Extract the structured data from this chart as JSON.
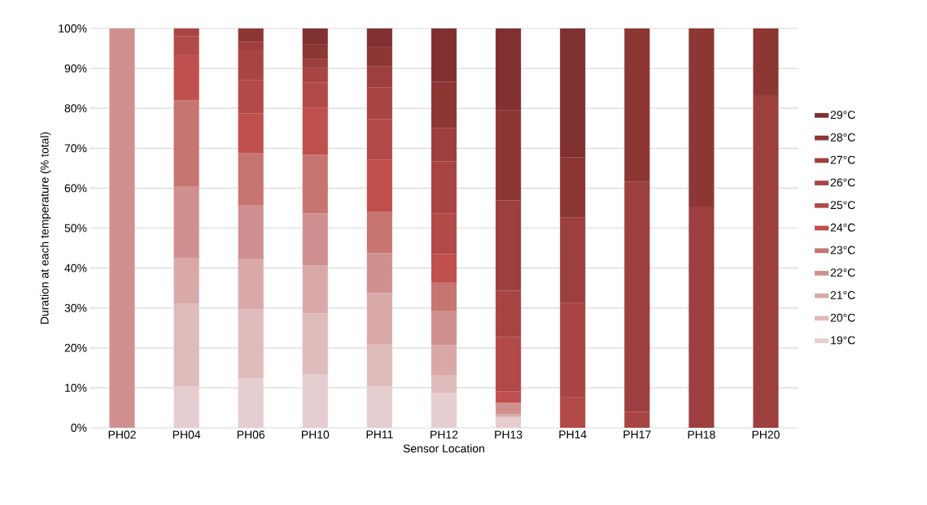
{
  "chart_data": {
    "type": "bar",
    "stacked": true,
    "xlabel": "Sensor Location",
    "ylabel": "Duration at each temperature  (% total)",
    "categories": [
      "PH02",
      "PH04",
      "PH06",
      "PH10",
      "PH11",
      "PH12",
      "PH13",
      "PH14",
      "PH17",
      "PH18",
      "PH20"
    ],
    "ylim": [
      0,
      100
    ],
    "yticks": [
      {
        "value": 0,
        "label": "0%"
      },
      {
        "value": 10,
        "label": "10%"
      },
      {
        "value": 20,
        "label": "20%"
      },
      {
        "value": 30,
        "label": "30%"
      },
      {
        "value": 40,
        "label": "40%"
      },
      {
        "value": 50,
        "label": "50%"
      },
      {
        "value": 60,
        "label": "60%"
      },
      {
        "value": 70,
        "label": "70%"
      },
      {
        "value": 80,
        "label": "80%"
      },
      {
        "value": 90,
        "label": "90%"
      },
      {
        "value": 100,
        "label": "100%"
      }
    ],
    "grid": "y",
    "legend": "right",
    "series": [
      {
        "name": "19°C",
        "color": "#e6cdd0",
        "values": [
          0,
          10.3,
          12.4,
          13.3,
          10.3,
          8.7,
          2.7,
          0,
          0,
          0,
          0
        ]
      },
      {
        "name": "20°C",
        "color": "#dfbbbc",
        "values": [
          0,
          20.8,
          17.3,
          15.3,
          10.7,
          4.4,
          0,
          0,
          0,
          0,
          0
        ]
      },
      {
        "name": "21°C",
        "color": "#d9a9aa",
        "values": [
          0,
          11.3,
          12.5,
          12.1,
          12.7,
          7.6,
          0.7,
          0,
          0,
          0,
          0
        ]
      },
      {
        "name": "22°C",
        "color": "#d09090",
        "values": [
          100,
          18.1,
          13.6,
          13.0,
          10.0,
          8.5,
          2.9,
          0,
          0,
          0,
          0
        ]
      },
      {
        "name": "23°C",
        "color": "#c67571",
        "values": [
          0,
          21.5,
          13.0,
          14.7,
          10.3,
          7.1,
          0,
          0,
          0,
          0,
          0
        ]
      },
      {
        "name": "24°C",
        "color": "#c0504d",
        "values": [
          0,
          11.3,
          9.9,
          11.8,
          13.1,
          7.2,
          2.8,
          0,
          0,
          0,
          0
        ]
      },
      {
        "name": "25°C",
        "color": "#b24a47",
        "values": [
          0,
          4.8,
          8.4,
          6.3,
          10.2,
          10.2,
          13.6,
          7.6,
          0,
          0,
          0
        ]
      },
      {
        "name": "26°C",
        "color": "#a84543",
        "values": [
          0,
          1.9,
          7.6,
          3.7,
          8.0,
          13.0,
          11.6,
          23.7,
          4.0,
          0,
          0
        ]
      },
      {
        "name": "27°C",
        "color": "#9d3f3e",
        "values": [
          0,
          0,
          2.0,
          2.1,
          5.3,
          8.4,
          22.6,
          21.4,
          57.6,
          55.4,
          83.3
        ]
      },
      {
        "name": "28°C",
        "color": "#8d3735",
        "values": [
          0,
          0,
          3.3,
          3.8,
          4.9,
          11.6,
          22.7,
          15.0,
          38.4,
          44.6,
          16.7
        ]
      },
      {
        "name": "29°C",
        "color": "#7f302f",
        "values": [
          0,
          0,
          0,
          3.9,
          4.5,
          13.3,
          20.4,
          32.3,
          0,
          0,
          0
        ]
      }
    ]
  }
}
